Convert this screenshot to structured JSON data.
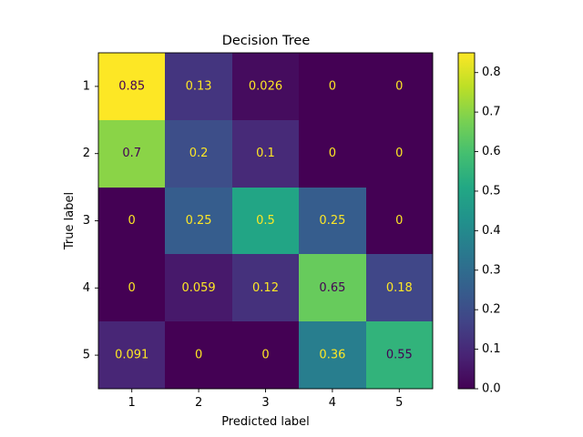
{
  "chart_data": {
    "type": "heatmap",
    "title": "Decision Tree",
    "xlabel": "Predicted label",
    "ylabel": "True label",
    "x_categories": [
      "1",
      "2",
      "3",
      "4",
      "5"
    ],
    "y_categories": [
      "1",
      "2",
      "3",
      "4",
      "5"
    ],
    "values": [
      [
        0.85,
        0.13,
        0.026,
        0,
        0
      ],
      [
        0.7,
        0.2,
        0.1,
        0,
        0
      ],
      [
        0,
        0.25,
        0.5,
        0.25,
        0
      ],
      [
        0,
        0.059,
        0.12,
        0.65,
        0.18
      ],
      [
        0.091,
        0,
        0,
        0.36,
        0.55
      ]
    ],
    "value_labels": [
      [
        "0.85",
        "0.13",
        "0.026",
        "0",
        "0"
      ],
      [
        "0.7",
        "0.2",
        "0.1",
        "0",
        "0"
      ],
      [
        "0",
        "0.25",
        "0.5",
        "0.25",
        "0"
      ],
      [
        "0",
        "0.059",
        "0.12",
        "0.65",
        "0.18"
      ],
      [
        "0.091",
        "0",
        "0",
        "0.36",
        "0.55"
      ]
    ],
    "colormap": "viridis",
    "colorbar": {
      "range": [
        0,
        0.85
      ],
      "ticks": [
        0.0,
        0.1,
        0.2,
        0.3,
        0.4,
        0.5,
        0.6,
        0.7,
        0.8
      ],
      "tick_labels": [
        "0.0",
        "0.1",
        "0.2",
        "0.3",
        "0.4",
        "0.5",
        "0.6",
        "0.7",
        "0.8"
      ]
    },
    "grid": false,
    "colors": {
      "text_on_dark": "#fde725",
      "text_on_light": "#440154"
    }
  }
}
